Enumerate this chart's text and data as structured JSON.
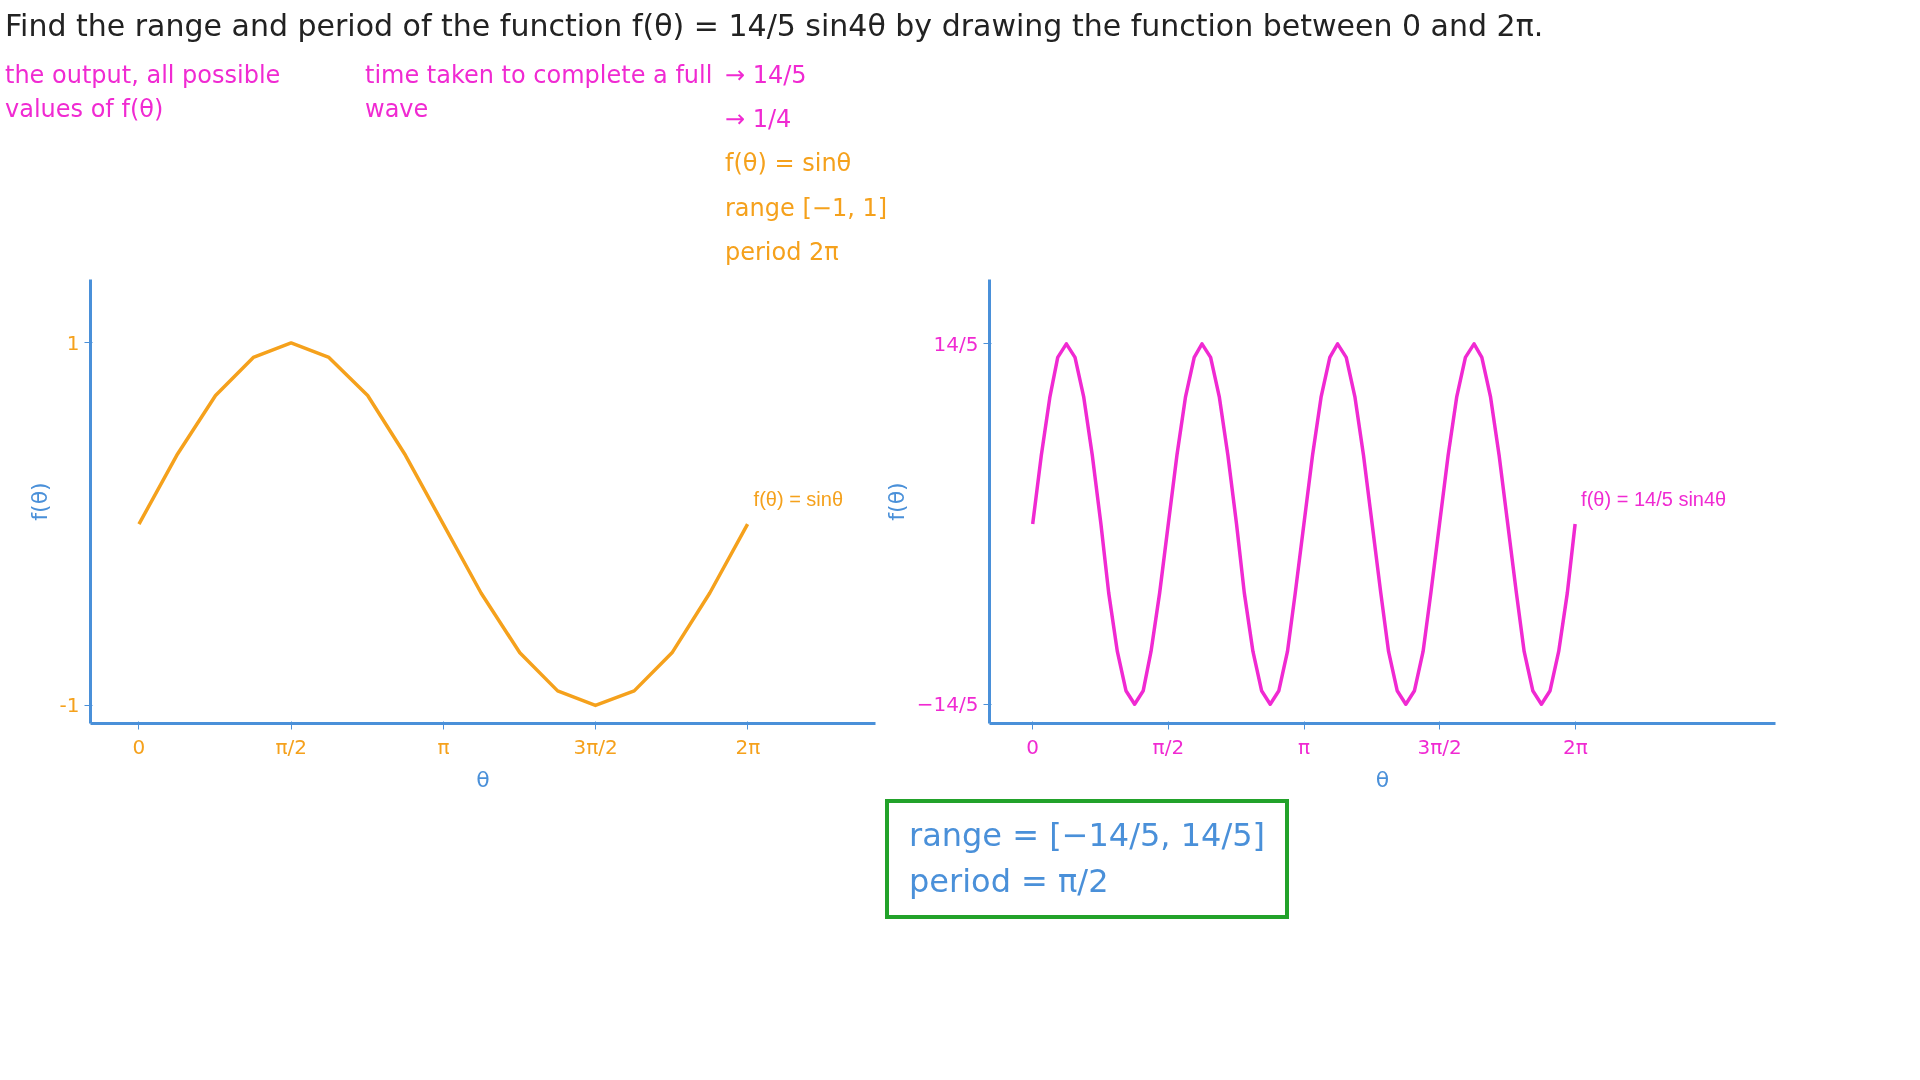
{
  "chart_data": [
    {
      "type": "line",
      "title": "Find the range and period of the function f(θ) = 14/5 sin4θ by drawing the function between 0 and 2π.",
      "xlabel": "θ",
      "ylabel": "f(θ)",
      "annotations": [
        "the output, all possible values of f(θ)",
        "time taken to complete a full wave"
      ],
      "x": [
        0,
        0.39,
        0.79,
        1.18,
        1.57,
        1.96,
        2.36,
        2.75,
        3.14,
        3.53,
        3.93,
        4.32,
        4.71,
        5.11,
        5.5,
        5.89,
        6.28
      ],
      "series": [
        {
          "name": "f(θ) = sinθ",
          "color": "#f5a11c",
          "values": [
            0,
            0.38,
            0.71,
            0.92,
            1,
            0.92,
            0.71,
            0.38,
            0,
            -0.38,
            -0.71,
            -0.92,
            -1,
            -0.92,
            -0.71,
            -0.38,
            0
          ]
        }
      ],
      "xlim": [
        -0.5,
        7.6
      ],
      "ylim": [
        -1.1,
        1.35
      ],
      "xticks": [
        {
          "value": 0,
          "label": "0"
        },
        {
          "value": 1.5708,
          "label": "π/2"
        },
        {
          "value": 3.1416,
          "label": "π"
        },
        {
          "value": 4.7124,
          "label": "3π/2"
        },
        {
          "value": 6.2832,
          "label": "2π"
        }
      ],
      "yticks": [
        1,
        -1
      ],
      "grid": false,
      "legend": false,
      "marker": "none",
      "line_style": "solid"
    },
    {
      "type": "line",
      "xlabel": "θ",
      "ylabel": "f(θ)",
      "annotations": [
        "→ 14/5",
        "→ 1/4",
        "f(θ) = sinθ",
        "range [−1, 1]",
        "period 2π",
        "range = [−14/5, 14/5]",
        "period = π/2"
      ],
      "x": [
        0,
        0.1,
        0.2,
        0.29,
        0.39,
        0.49,
        0.59,
        0.69,
        0.79,
        0.88,
        0.98,
        1.08,
        1.18,
        1.28,
        1.37,
        1.47,
        1.57,
        1.67,
        1.77,
        1.87,
        1.96,
        2.06,
        2.16,
        2.26,
        2.36,
        2.45,
        2.55,
        2.65,
        2.75,
        2.85,
        2.95,
        3.04,
        3.14,
        3.24,
        3.34,
        3.44,
        3.53,
        3.63,
        3.73,
        3.83,
        3.93,
        4.03,
        4.12,
        4.22,
        4.32,
        4.42,
        4.52,
        4.61,
        4.71,
        4.81,
        4.91,
        5.01,
        5.11,
        5.2,
        5.3,
        5.4,
        5.5,
        5.6,
        5.69,
        5.79,
        5.89,
        5.99,
        6.09,
        6.19,
        6.28
      ],
      "series": [
        {
          "name": "f(θ) = 14/5 sin4θ",
          "color": "#f02ad2",
          "values": [
            0,
            1.07,
            1.98,
            2.59,
            2.8,
            2.59,
            1.98,
            1.07,
            0,
            -1.07,
            -1.98,
            -2.59,
            -2.8,
            -2.59,
            -1.98,
            -1.07,
            0,
            1.07,
            1.98,
            2.59,
            2.8,
            2.59,
            1.98,
            1.07,
            0,
            -1.07,
            -1.98,
            -2.59,
            -2.8,
            -2.59,
            -1.98,
            -1.07,
            0,
            1.07,
            1.98,
            2.59,
            2.8,
            2.59,
            1.98,
            1.07,
            0,
            -1.07,
            -1.98,
            -2.59,
            -2.8,
            -2.59,
            -1.98,
            -1.07,
            0,
            1.07,
            1.98,
            2.59,
            2.8,
            2.59,
            1.98,
            1.07,
            0,
            -1.07,
            -1.98,
            -2.59,
            -2.8,
            -2.59,
            -1.98,
            -1.07,
            0
          ]
        }
      ],
      "xlim": [
        -0.5,
        8.6
      ],
      "ylim": [
        -3.1,
        3.8
      ],
      "xticks": [
        {
          "value": 0,
          "label": "0"
        },
        {
          "value": 1.5708,
          "label": "π/2"
        },
        {
          "value": 3.1416,
          "label": "π"
        },
        {
          "value": 4.7124,
          "label": "3π/2"
        },
        {
          "value": 6.2832,
          "label": "2π"
        }
      ],
      "yticks": [
        {
          "value": 2.8,
          "label": "14/5"
        },
        {
          "value": -2.8,
          "label": "−14/5"
        }
      ],
      "grid": false,
      "legend": false,
      "marker": "none",
      "line_style": "solid"
    }
  ]
}
